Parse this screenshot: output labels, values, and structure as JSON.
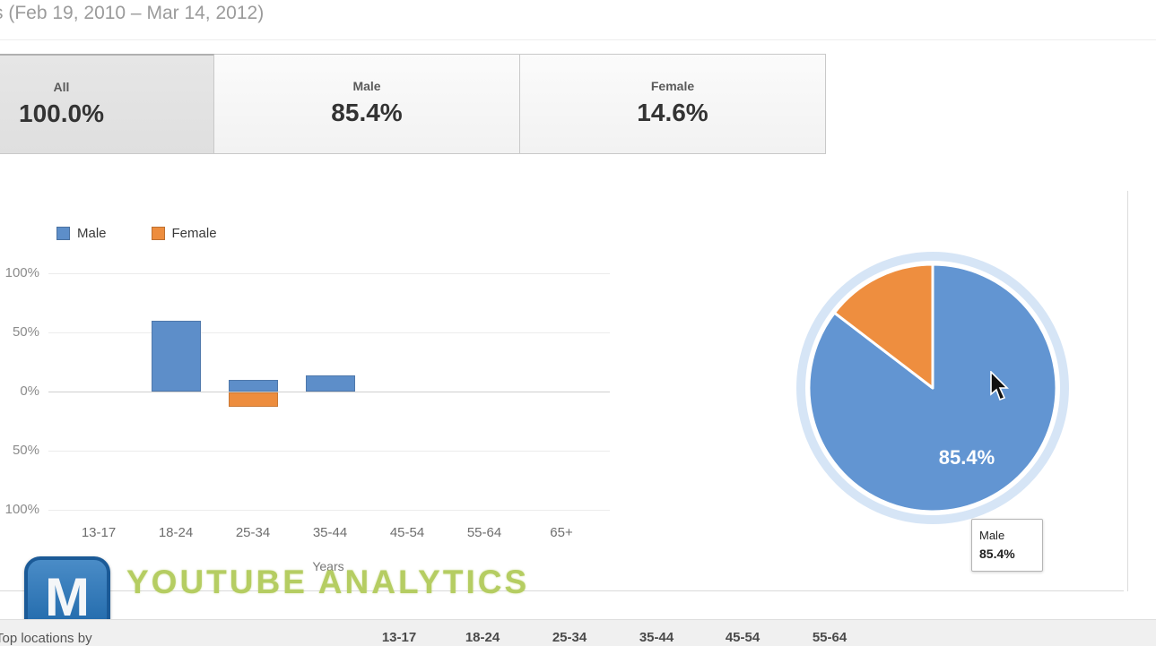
{
  "header": {
    "truncated_prefix": "s",
    "date_range": "(Feb 19, 2010 – Mar 14, 2012)"
  },
  "tabs": [
    {
      "label": "All",
      "value": "100.0%",
      "selected": true
    },
    {
      "label": "Male",
      "value": "85.4%",
      "selected": false
    },
    {
      "label": "Female",
      "value": "14.6%",
      "selected": false
    }
  ],
  "chart_data": [
    {
      "type": "bar",
      "categories": [
        "13-17",
        "18-24",
        "25-34",
        "35-44",
        "45-54",
        "55-64",
        "65+"
      ],
      "series": [
        {
          "name": "Male",
          "color": "#5d8ec9",
          "values": [
            0,
            60,
            10,
            14,
            0,
            0,
            0
          ]
        },
        {
          "name": "Female",
          "color": "#ed8d3e",
          "values": [
            0,
            0,
            -12,
            0,
            0,
            0,
            0
          ]
        }
      ],
      "xlabel": "Years",
      "ylabel": "",
      "y_ticks": [
        "100%",
        "50%",
        "0%",
        "50%",
        "100%"
      ],
      "ylim": [
        -100,
        100
      ],
      "grid": true,
      "legend_position": "top-left"
    },
    {
      "type": "pie",
      "slices": [
        {
          "label": "Male",
          "value": 85.4,
          "color": "#6295d2"
        },
        {
          "label": "Female",
          "value": 14.6,
          "color": "#ee8e3f"
        }
      ],
      "data_label": "85.4%",
      "legend_position": "none"
    }
  ],
  "pie_tooltip": {
    "title": "Male",
    "value": "85.4%"
  },
  "watermark": {
    "logo_letter": "M",
    "text": "YOUTUBE ANALYTICS"
  },
  "bottom_row": {
    "left_text": "Top locations by",
    "column_headers": [
      "13-17",
      "18-24",
      "25-34",
      "35-44",
      "45-54",
      "55-64"
    ]
  },
  "colors": {
    "halo": "#cfe0f4",
    "watermark_green": "#b5cd62",
    "logo_blue": "#2a72b5"
  }
}
